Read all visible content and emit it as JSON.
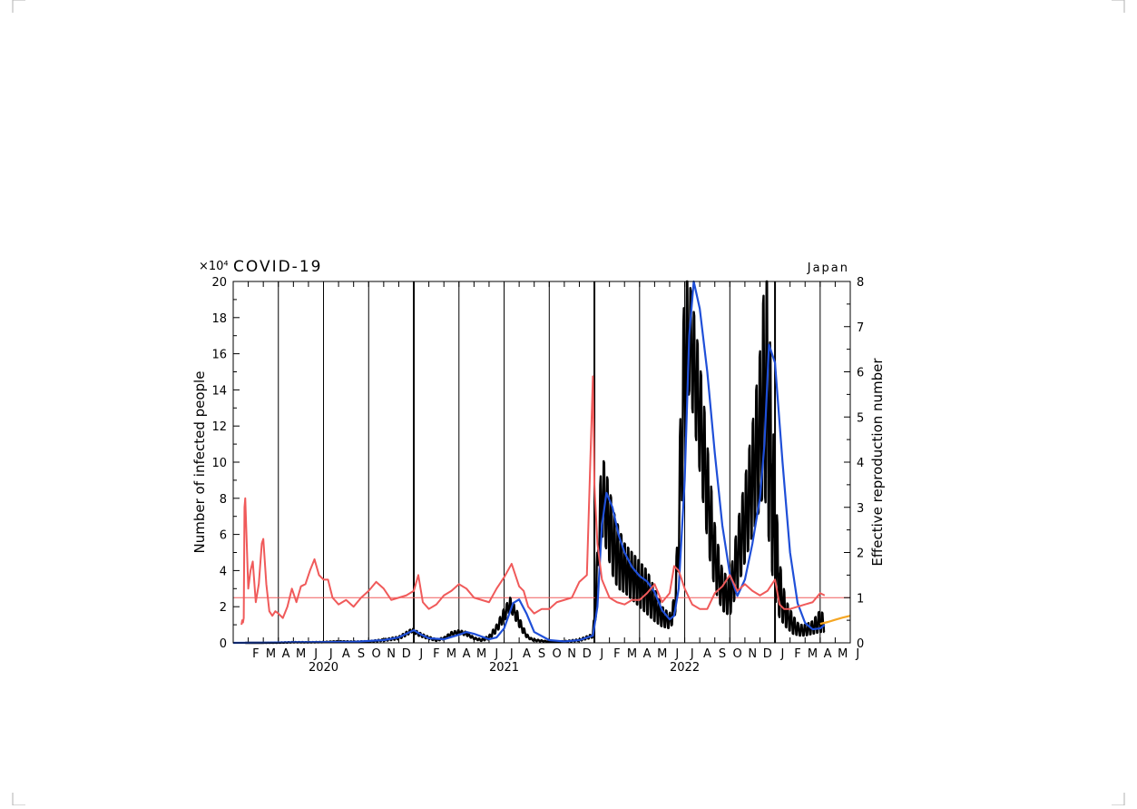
{
  "chart_data": {
    "type": "line",
    "title": "COVID-19",
    "location": "Japan",
    "y_multiplier": "×10⁴",
    "ylabel_left": "Number of infected people",
    "ylabel_right": "Effective reproduction number",
    "ylim_left": [
      0,
      20
    ],
    "ylim_right": [
      0,
      8
    ],
    "yticks_left": [
      "0",
      "2",
      "4",
      "6",
      "8",
      "10",
      "12",
      "14",
      "16",
      "18",
      "20"
    ],
    "yticks_right": [
      "0",
      "1",
      "2",
      "3",
      "4",
      "5",
      "6",
      "7",
      "8"
    ],
    "month_labels": [
      "F",
      "M",
      "A",
      "M",
      "J",
      "J",
      "A",
      "S",
      "O",
      "N",
      "D",
      "J",
      "F",
      "M",
      "A",
      "M",
      "J",
      "J",
      "A",
      "S",
      "O",
      "N",
      "D",
      "J",
      "F",
      "M",
      "A",
      "M",
      "J",
      "J",
      "A",
      "S",
      "O",
      "N",
      "D",
      "J",
      "F",
      "M",
      "A",
      "M",
      "J"
    ],
    "years": [
      {
        "label": "2020",
        "month": 6
      },
      {
        "label": "2021",
        "month": 18
      },
      {
        "label": "2022",
        "month": 30
      }
    ],
    "x_unit": "months since Jan 2020 (0 = Jan 1, 2020)",
    "xlim": [
      0,
      41
    ],
    "reference_line_right": 1,
    "grid": "vertical lines every 3 months; thicker at year boundaries",
    "series": [
      {
        "kind": "daily-band",
        "color": "#000000",
        "axis": "left",
        "x": [
          0.8,
          2,
          3,
          4,
          5,
          6,
          7,
          8,
          9,
          10,
          11,
          11.5,
          11.9,
          12.3,
          12.8,
          13.5,
          14,
          14.5,
          15,
          15.5,
          16,
          16.5,
          17,
          17.5,
          18,
          18.4,
          18.8,
          19.2,
          19.5,
          19.7,
          20,
          21,
          22,
          23,
          23.9,
          24.1,
          24.3,
          24.5,
          24.7,
          25.0,
          25.3,
          25.6,
          26.0,
          26.5,
          27.0,
          27.5,
          28.0,
          28.5,
          29.0,
          29.3,
          29.5,
          29.7,
          30.0,
          30.3,
          30.5,
          30.8,
          31.2,
          31.6,
          32.0,
          32.5,
          33.0,
          33.5,
          34.0,
          34.5,
          35.0,
          35.3,
          35.5,
          35.8,
          36.0,
          36.3,
          36.7,
          37.2,
          37.6,
          38.0,
          38.5,
          39.0,
          39.3
        ],
        "lo": [
          0.0,
          0.0,
          0.0,
          0.02,
          0.02,
          0.03,
          0.06,
          0.04,
          0.05,
          0.1,
          0.2,
          0.4,
          0.6,
          0.4,
          0.25,
          0.1,
          0.2,
          0.4,
          0.5,
          0.4,
          0.2,
          0.1,
          0.2,
          0.6,
          1.2,
          1.8,
          1.2,
          0.6,
          0.3,
          0.2,
          0.1,
          0.05,
          0.05,
          0.1,
          0.3,
          1.5,
          4.5,
          6.0,
          5.5,
          4.5,
          3.5,
          3.0,
          2.8,
          2.4,
          2.0,
          1.6,
          1.2,
          0.9,
          0.8,
          1.2,
          2.5,
          6.0,
          11.0,
          14.0,
          13.0,
          11.0,
          8.0,
          5.0,
          3.0,
          1.8,
          1.5,
          3.0,
          4.5,
          6.0,
          7.5,
          8.5,
          6.5,
          4.0,
          2.5,
          1.4,
          0.9,
          0.5,
          0.4,
          0.4,
          0.5,
          0.6,
          0.6
        ],
        "hi": [
          0.0,
          0.0,
          0.02,
          0.05,
          0.04,
          0.06,
          0.1,
          0.08,
          0.1,
          0.2,
          0.35,
          0.6,
          0.8,
          0.6,
          0.4,
          0.2,
          0.3,
          0.6,
          0.7,
          0.6,
          0.3,
          0.2,
          0.4,
          1.0,
          1.9,
          2.5,
          1.9,
          1.0,
          0.5,
          0.3,
          0.2,
          0.08,
          0.1,
          0.2,
          0.5,
          3.0,
          7.5,
          10.4,
          9.8,
          8.5,
          7.2,
          6.4,
          5.5,
          5.0,
          4.5,
          4.0,
          3.0,
          2.0,
          1.6,
          2.5,
          5.5,
          12.0,
          20.0,
          20.0,
          19.0,
          17.0,
          14.0,
          10.0,
          6.5,
          4.0,
          3.5,
          6.5,
          9.0,
          12.0,
          16.0,
          20.0,
          20.0,
          14.0,
          9.0,
          4.5,
          2.4,
          1.5,
          1.0,
          1.0,
          1.2,
          1.8,
          1.5
        ]
      },
      {
        "name": "",
        "kind": "smoothed",
        "color": "#1f4fd8",
        "axis": "left",
        "x": [
          0,
          2,
          4,
          6,
          8,
          10,
          11,
          11.5,
          12,
          12.5,
          13,
          14,
          15,
          15.5,
          16,
          17,
          17.5,
          18,
          18.3,
          18.6,
          19,
          19.5,
          20,
          21,
          22,
          23,
          23.9,
          24.2,
          24.5,
          24.8,
          25.2,
          25.6,
          26.0,
          26.5,
          27.0,
          27.5,
          28.0,
          28.5,
          29.0,
          29.3,
          29.6,
          30.0,
          30.3,
          30.6,
          31.0,
          31.5,
          32.0,
          32.5,
          33.0,
          33.5,
          34.0,
          34.5,
          35.0,
          35.3,
          35.6,
          36.0,
          36.5,
          37.0,
          37.5,
          38.0,
          38.5,
          39.0,
          39.3
        ],
        "y": [
          0,
          0.01,
          0.03,
          0.04,
          0.06,
          0.15,
          0.3,
          0.5,
          0.7,
          0.45,
          0.25,
          0.2,
          0.45,
          0.6,
          0.5,
          0.2,
          0.3,
          0.8,
          1.5,
          2.2,
          2.4,
          1.6,
          0.6,
          0.15,
          0.08,
          0.15,
          0.4,
          2.0,
          6.5,
          8.3,
          7.5,
          6.0,
          5.0,
          4.2,
          3.7,
          3.4,
          2.8,
          1.8,
          1.3,
          1.5,
          3.0,
          9.0,
          17.0,
          20.0,
          18.5,
          15.0,
          10.5,
          6.5,
          3.8,
          2.6,
          3.5,
          5.5,
          8.0,
          11.0,
          16.5,
          15.5,
          10.0,
          5.0,
          2.2,
          1.1,
          0.75,
          0.8,
          1.0
        ]
      },
      {
        "name": "",
        "kind": "reproduction-number",
        "color": "#f05a5a",
        "axis": "right",
        "x": [
          0.55,
          0.6,
          0.65,
          0.7,
          0.75,
          0.8,
          0.9,
          1.0,
          1.15,
          1.3,
          1.5,
          1.7,
          1.9,
          2.0,
          2.2,
          2.4,
          2.6,
          2.8,
          3.0,
          3.3,
          3.6,
          3.9,
          4.2,
          4.5,
          4.8,
          5.1,
          5.4,
          5.7,
          6.0,
          6.3,
          6.6,
          7.0,
          7.5,
          8.0,
          8.5,
          9.0,
          9.5,
          10.0,
          10.5,
          11.0,
          11.5,
          12.0,
          12.3,
          12.6,
          13.0,
          13.5,
          14.0,
          14.5,
          15.0,
          15.5,
          16.0,
          16.5,
          17.0,
          17.5,
          18.0,
          18.5,
          19.0,
          19.3,
          19.6,
          20.0,
          20.5,
          21.0,
          21.5,
          22.0,
          22.5,
          23.0,
          23.5,
          23.9,
          24.0,
          24.2,
          24.5,
          25.0,
          25.5,
          26.0,
          26.5,
          27.0,
          27.5,
          28.0,
          28.5,
          29.0,
          29.3,
          29.6,
          30.0,
          30.5,
          31.0,
          31.5,
          32.0,
          32.5,
          33.0,
          33.5,
          34.0,
          34.5,
          35.0,
          35.5,
          36.0,
          36.3,
          36.6,
          37.0,
          37.5,
          38.0,
          38.5,
          39.0,
          39.3
        ],
        "y": [
          0.4,
          0.5,
          0.45,
          0.55,
          3.0,
          3.2,
          2.2,
          1.2,
          1.6,
          1.8,
          0.9,
          1.3,
          2.2,
          2.3,
          1.3,
          0.7,
          0.6,
          0.7,
          0.65,
          0.55,
          0.8,
          1.2,
          0.9,
          1.25,
          1.3,
          1.6,
          1.85,
          1.5,
          1.4,
          1.4,
          1.0,
          0.85,
          0.95,
          0.8,
          1.0,
          1.15,
          1.35,
          1.2,
          0.95,
          1.0,
          1.05,
          1.15,
          1.5,
          0.9,
          0.75,
          0.85,
          1.05,
          1.15,
          1.3,
          1.2,
          1.0,
          0.95,
          0.9,
          1.2,
          1.45,
          1.75,
          1.25,
          1.15,
          0.8,
          0.65,
          0.75,
          0.75,
          0.9,
          0.95,
          1.0,
          1.35,
          1.5,
          5.9,
          3.5,
          2.2,
          1.4,
          1.0,
          0.9,
          0.85,
          0.95,
          0.95,
          1.1,
          1.3,
          0.9,
          1.1,
          1.7,
          1.6,
          1.2,
          0.85,
          0.75,
          0.75,
          1.1,
          1.25,
          1.5,
          1.15,
          1.3,
          1.15,
          1.05,
          1.15,
          1.4,
          0.85,
          0.75,
          0.75,
          0.8,
          0.85,
          0.9,
          1.1,
          1.05
        ]
      },
      {
        "name": "",
        "kind": "projection",
        "color": "#f5a623",
        "axis": "left",
        "x": [
          39.0,
          39.5,
          40.0,
          40.5,
          41.0
        ],
        "y": [
          1.05,
          1.15,
          1.28,
          1.4,
          1.5
        ]
      }
    ]
  }
}
